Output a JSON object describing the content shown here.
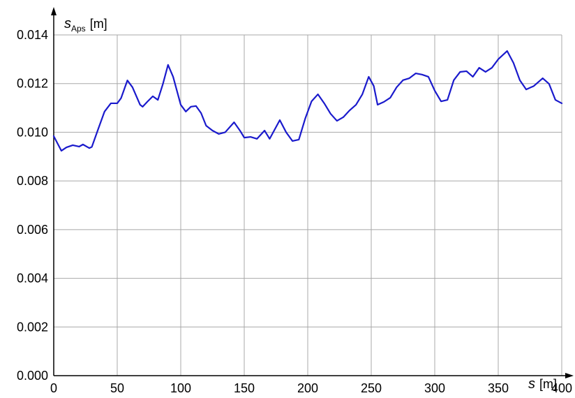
{
  "chart_data": {
    "type": "line",
    "ylabel": {
      "symbol": "s",
      "subscript": "Aps",
      "unit": "[m]"
    },
    "xlabel": {
      "symbol": "s",
      "unit": "[m]"
    },
    "color": "#1a1acc",
    "grid": true,
    "xlim": [
      0,
      400
    ],
    "ylim": [
      0,
      0.014
    ],
    "xticks": [
      0,
      50,
      100,
      150,
      200,
      250,
      300,
      350,
      400
    ],
    "yticks": [
      {
        "value": 0,
        "label": "0.000"
      },
      {
        "value": 0.002,
        "label": "0.002"
      },
      {
        "value": 0.004,
        "label": "0.004"
      },
      {
        "value": 0.006,
        "label": "0.006"
      },
      {
        "value": 0.008,
        "label": "0.008"
      },
      {
        "value": 0.01,
        "label": "0.010"
      },
      {
        "value": 0.012,
        "label": "0.012"
      },
      {
        "value": 0.014,
        "label": "0.014"
      }
    ],
    "x": [
      0,
      6,
      10,
      15,
      20,
      23,
      28,
      30,
      35,
      40,
      45,
      50,
      53,
      58,
      62,
      68,
      70,
      74,
      78,
      82,
      86,
      90,
      94,
      100,
      104,
      108,
      112,
      116,
      120,
      125,
      130,
      135,
      142,
      147,
      150,
      155,
      160,
      166,
      170,
      178,
      183,
      188,
      193,
      198,
      203,
      208,
      213,
      218,
      223,
      228,
      233,
      238,
      243,
      248,
      252,
      255,
      260,
      265,
      270,
      275,
      280,
      285,
      290,
      295,
      300,
      305,
      310,
      315,
      320,
      325,
      330,
      335,
      340,
      345,
      350,
      357,
      362,
      367,
      372,
      378,
      385,
      390,
      395,
      400
    ],
    "values": [
      0.00984,
      0.00924,
      0.00938,
      0.00947,
      0.00941,
      0.0095,
      0.00935,
      0.0094,
      0.01013,
      0.01085,
      0.01119,
      0.01119,
      0.0114,
      0.01213,
      0.01185,
      0.01113,
      0.01105,
      0.01127,
      0.01148,
      0.01133,
      0.01199,
      0.01277,
      0.01228,
      0.01113,
      0.01085,
      0.01105,
      0.01108,
      0.01079,
      0.01027,
      0.01007,
      0.00993,
      0.01,
      0.01041,
      0.01004,
      0.00978,
      0.00981,
      0.00973,
      0.01007,
      0.00973,
      0.0105,
      0.01,
      0.00964,
      0.0097,
      0.01056,
      0.01127,
      0.01156,
      0.01119,
      0.01076,
      0.01047,
      0.01062,
      0.0109,
      0.01113,
      0.01156,
      0.01228,
      0.0119,
      0.01113,
      0.01125,
      0.01142,
      0.01185,
      0.01214,
      0.01222,
      0.01242,
      0.01237,
      0.01228,
      0.01171,
      0.01127,
      0.01133,
      0.01214,
      0.01248,
      0.01251,
      0.01228,
      0.01265,
      0.01248,
      0.01265,
      0.013,
      0.01334,
      0.01285,
      0.01214,
      0.01176,
      0.0119,
      0.01222,
      0.01199,
      0.01133,
      0.01119
    ]
  }
}
